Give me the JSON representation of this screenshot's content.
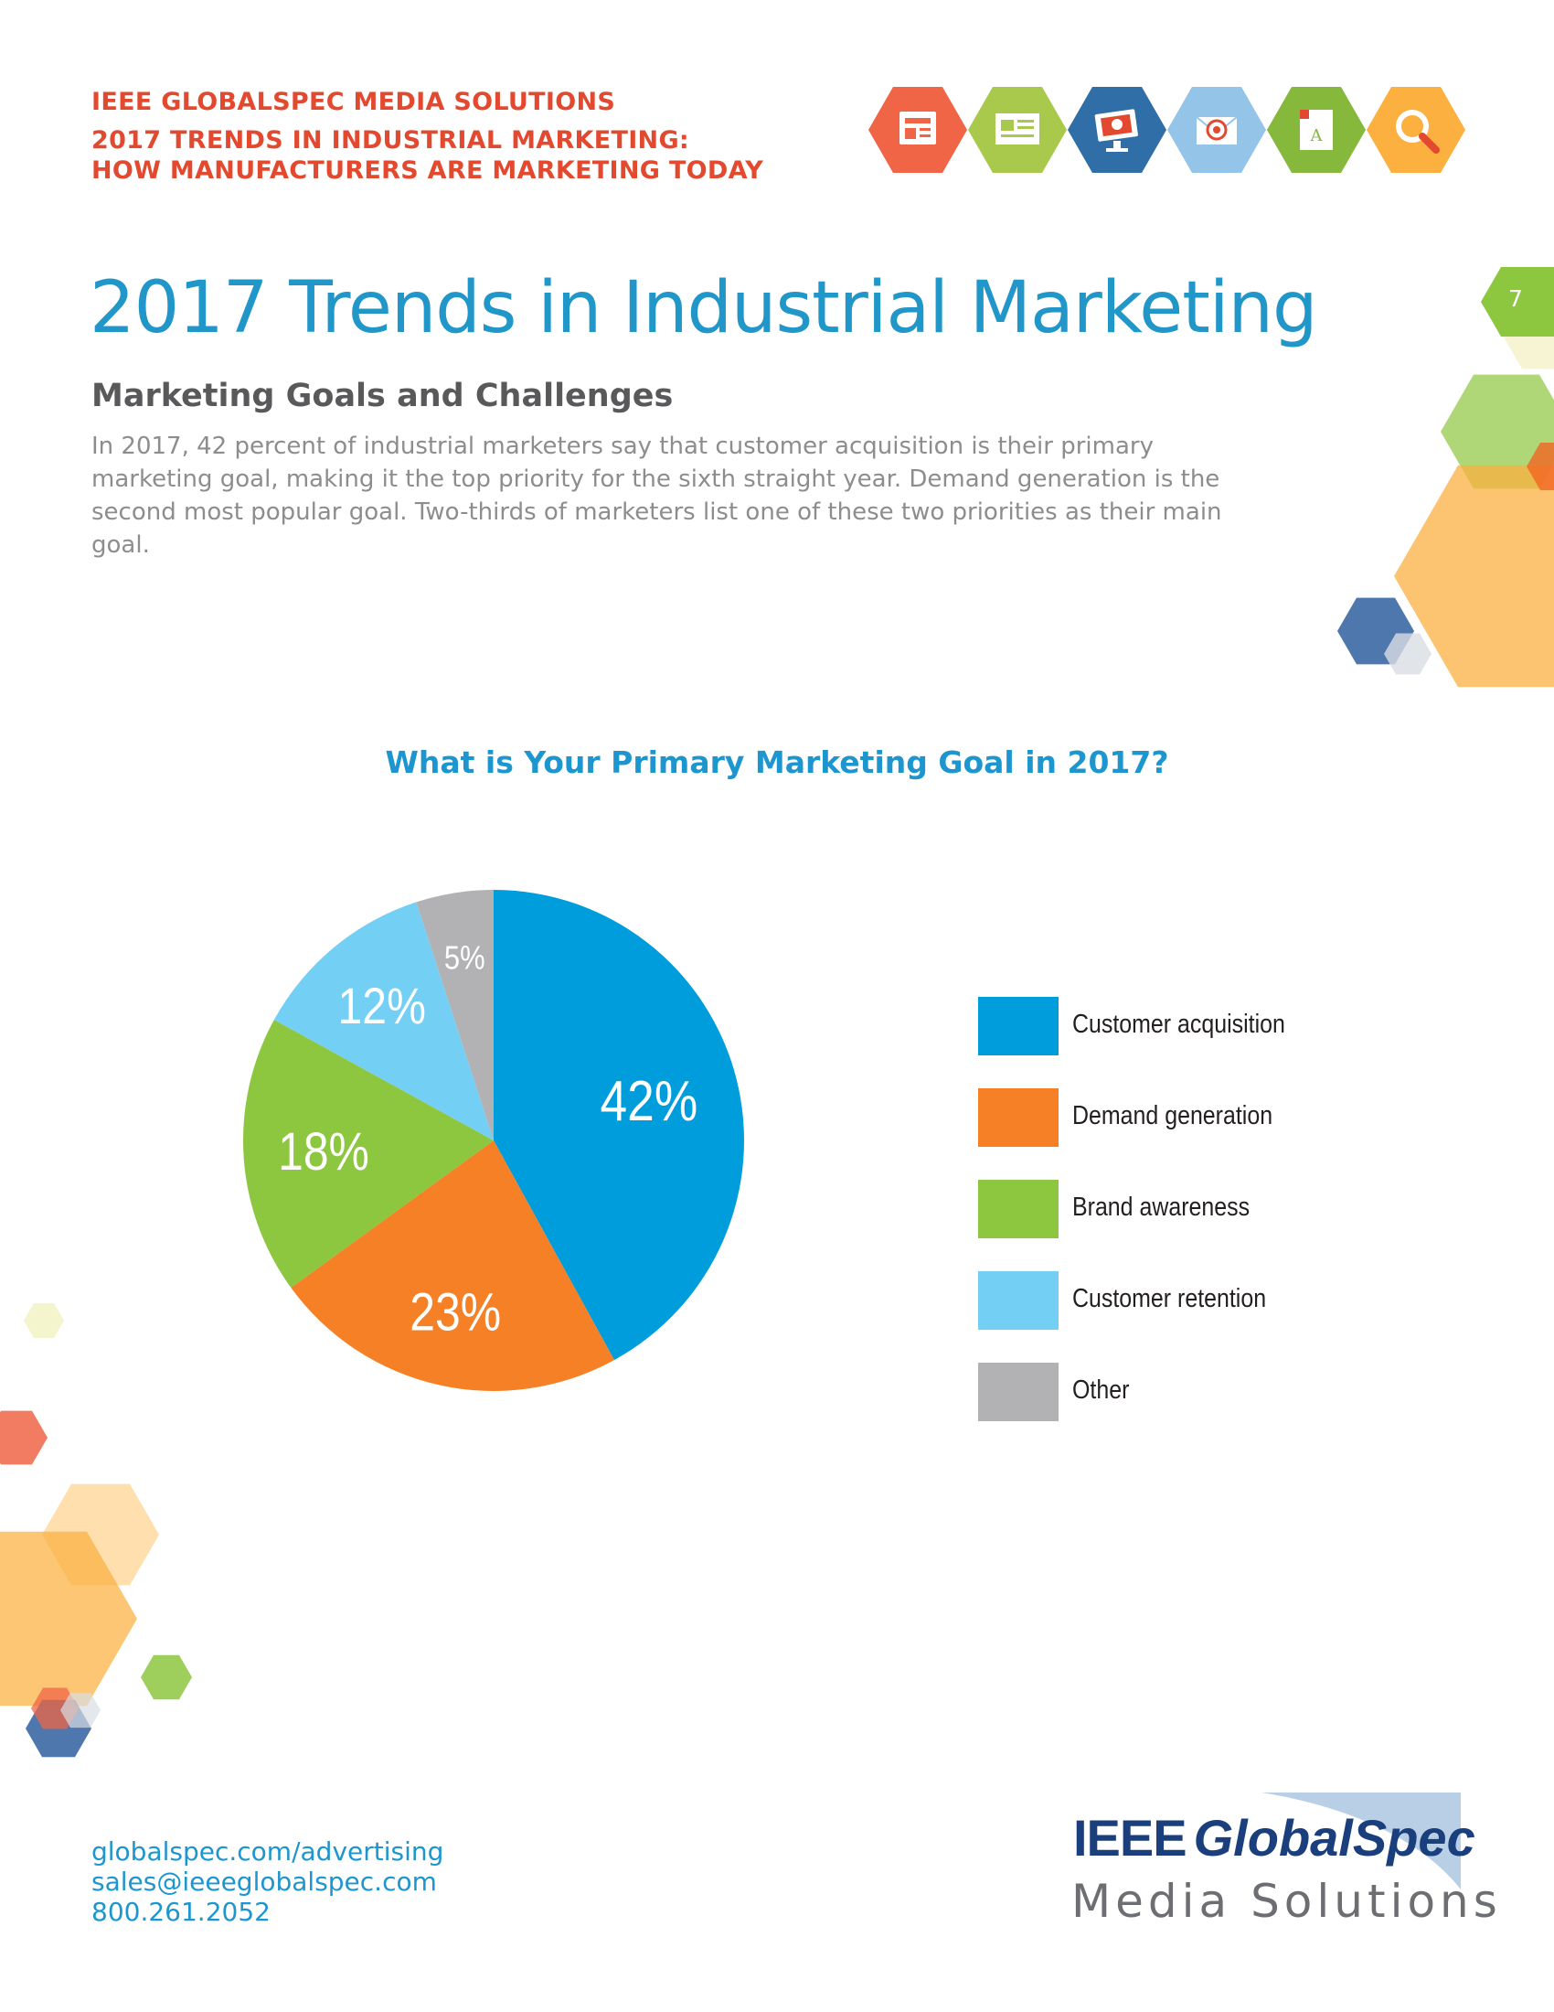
{
  "header": {
    "line1": "IEEE GLOBALSPEC MEDIA SOLUTIONS",
    "line2": "2017 TRENDS IN INDUSTRIAL MARKETING:",
    "line3": "HOW MANUFACTURERS ARE MARKETING TODAY",
    "icons": [
      {
        "name": "newspaper-icon",
        "color": "#ef6545"
      },
      {
        "name": "document-icon",
        "color": "#a8c94c"
      },
      {
        "name": "monitor-icon",
        "color": "#2f6ea6"
      },
      {
        "name": "email-target-icon",
        "color": "#94c4e8"
      },
      {
        "name": "ad-page-icon",
        "color": "#86b83c"
      },
      {
        "name": "search-icon",
        "color": "#fbb040"
      }
    ]
  },
  "page_number": "7",
  "title": "2017 Trends in Industrial Marketing",
  "section_heading": "Marketing Goals and Challenges",
  "intro": "In 2017, 42 percent of industrial marketers say that customer acquisition is their primary marketing goal, making it the top priority for the sixth straight year. Demand generation is the second most popular goal. Two-thirds of marketers list one of these two priorities as their main goal.",
  "chart_data": {
    "type": "pie",
    "title": "What is Your Primary Marketing Goal in 2017?",
    "categories": [
      "Customer acquisition",
      "Demand generation",
      "Brand awareness",
      "Customer retention",
      "Other"
    ],
    "values": [
      42,
      23,
      18,
      12,
      5
    ],
    "data_labels": [
      "42%",
      "23%",
      "18%",
      "12%",
      "5%"
    ],
    "colors": [
      "#009ddc",
      "#f58025",
      "#8dc63f",
      "#74cff5",
      "#b2b2b4"
    ],
    "legend_position": "right"
  },
  "footer": {
    "website": "globalspec.com/advertising",
    "email": "sales@ieeeglobalspec.com",
    "phone": "800.261.2052"
  },
  "logo": {
    "brand_ieee": "IEEE",
    "brand_name": "GlobalSpec",
    "subtitle": "Media Solutions"
  }
}
